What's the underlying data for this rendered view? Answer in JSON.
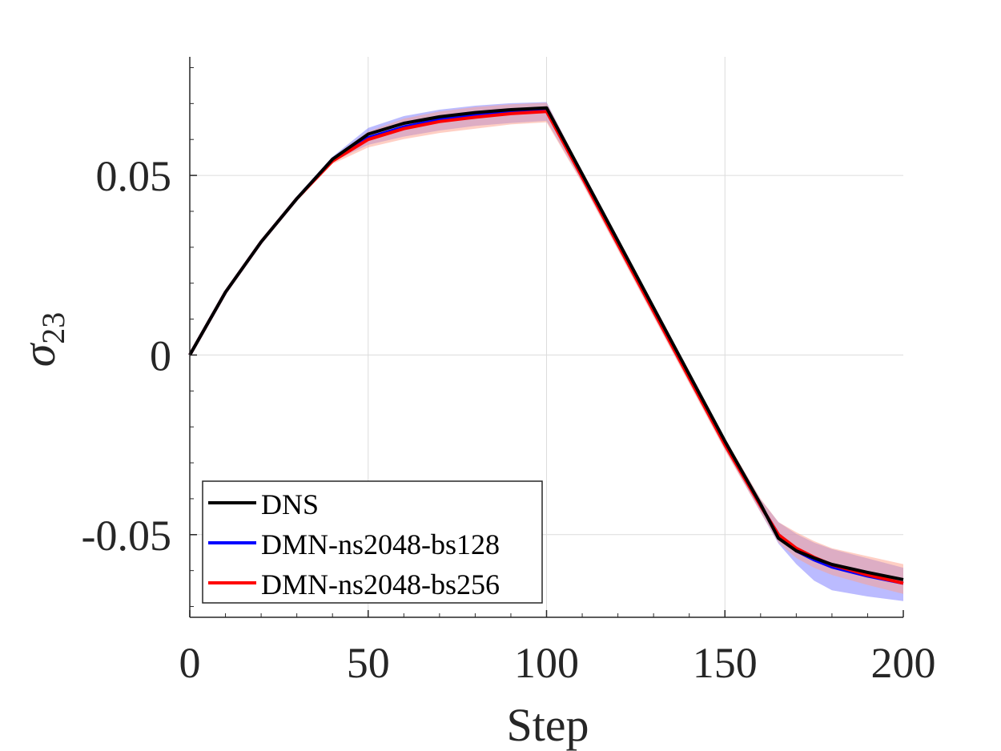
{
  "chart_data": {
    "type": "line",
    "title": "",
    "xlabel": "Step",
    "ylabel_symbol": "σ",
    "ylabel_subscript": "23",
    "xlim": [
      0,
      200
    ],
    "ylim": [
      -0.073,
      0.083
    ],
    "xticks": [
      0,
      50,
      100,
      150,
      200
    ],
    "xtick_labels": [
      "0",
      "50",
      "100",
      "150",
      "200"
    ],
    "yticks": [
      -0.05,
      0,
      0.05
    ],
    "ytick_labels": [
      "-0.05",
      "0",
      "0.05"
    ],
    "grid": true,
    "legend_position": "bottom-left",
    "series": [
      {
        "name": "DNS",
        "color": "#000000",
        "x": [
          0,
          10,
          20,
          30,
          40,
          50,
          60,
          70,
          80,
          90,
          100,
          110,
          120,
          130,
          140,
          150,
          160,
          165,
          170,
          175,
          180,
          190,
          200
        ],
        "y": [
          0,
          0.0175,
          0.0315,
          0.0435,
          0.0545,
          0.0615,
          0.0645,
          0.0663,
          0.0675,
          0.0683,
          0.0688,
          0.0504,
          0.0318,
          0.0132,
          -0.0054,
          -0.024,
          -0.0415,
          -0.051,
          -0.0545,
          -0.0565,
          -0.0583,
          -0.0605,
          -0.0625
        ]
      },
      {
        "name": "DMN-ns2048-bs128",
        "color": "#0000ff",
        "band_color": "#7878ff",
        "x": [
          0,
          10,
          20,
          30,
          40,
          50,
          60,
          70,
          80,
          90,
          100,
          110,
          120,
          130,
          140,
          150,
          160,
          165,
          170,
          175,
          180,
          190,
          200
        ],
        "y": [
          0,
          0.0175,
          0.0315,
          0.0435,
          0.0545,
          0.0605,
          0.0635,
          0.0655,
          0.0668,
          0.0676,
          0.068,
          0.0496,
          0.031,
          0.0124,
          -0.0062,
          -0.0248,
          -0.042,
          -0.05,
          -0.0545,
          -0.057,
          -0.059,
          -0.0615,
          -0.0635
        ],
        "lower": [
          0,
          0.0172,
          0.0311,
          0.0431,
          0.0538,
          0.0585,
          0.0608,
          0.0625,
          0.0638,
          0.0646,
          0.0652,
          0.0482,
          0.0296,
          0.011,
          -0.0076,
          -0.0262,
          -0.0438,
          -0.0525,
          -0.0582,
          -0.0628,
          -0.0655,
          -0.0672,
          -0.0685
        ],
        "upper": [
          0,
          0.0178,
          0.0319,
          0.0439,
          0.0552,
          0.0632,
          0.0665,
          0.0683,
          0.0694,
          0.0701,
          0.0704,
          0.051,
          0.0324,
          0.0138,
          -0.0048,
          -0.0234,
          -0.0402,
          -0.0465,
          -0.0498,
          -0.0522,
          -0.054,
          -0.0566,
          -0.0592
        ]
      },
      {
        "name": "DMN-ns2048-bs256",
        "color": "#ff0000",
        "band_color": "#ff9f8a",
        "x": [
          0,
          10,
          20,
          30,
          40,
          50,
          60,
          70,
          80,
          90,
          100,
          110,
          120,
          130,
          140,
          150,
          160,
          165,
          170,
          175,
          180,
          190,
          200
        ],
        "y": [
          0,
          0.0175,
          0.0315,
          0.0435,
          0.054,
          0.06,
          0.063,
          0.065,
          0.0662,
          0.0672,
          0.0678,
          0.0495,
          0.0308,
          0.0122,
          -0.0064,
          -0.025,
          -0.042,
          -0.05,
          -0.0538,
          -0.0563,
          -0.0584,
          -0.0612,
          -0.0635
        ],
        "lower": [
          0,
          0.0172,
          0.0311,
          0.0431,
          0.0532,
          0.0578,
          0.0601,
          0.0618,
          0.063,
          0.0642,
          0.0648,
          0.0478,
          0.0292,
          0.0106,
          -0.008,
          -0.0266,
          -0.0438,
          -0.0522,
          -0.0565,
          -0.0592,
          -0.0612,
          -0.064,
          -0.0665
        ],
        "upper": [
          0,
          0.0178,
          0.0319,
          0.0439,
          0.0548,
          0.0622,
          0.0658,
          0.0678,
          0.069,
          0.0698,
          0.0702,
          0.0512,
          0.0326,
          0.014,
          -0.0046,
          -0.0232,
          -0.04,
          -0.0465,
          -0.0493,
          -0.0518,
          -0.0538,
          -0.056,
          -0.0582
        ]
      }
    ]
  }
}
